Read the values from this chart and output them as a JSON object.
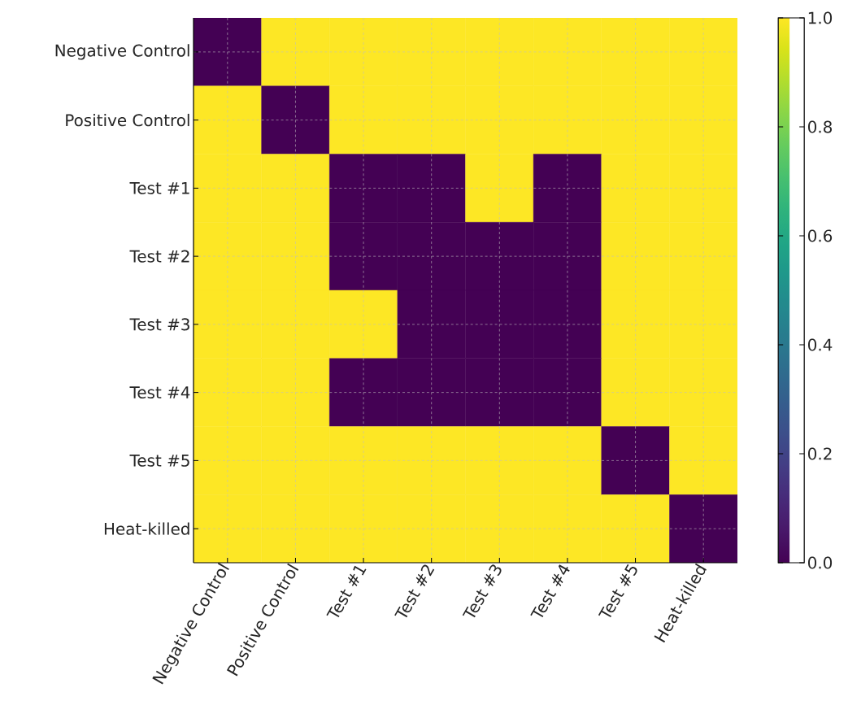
{
  "chart_data": {
    "type": "heatmap",
    "categories": [
      "Negative Control",
      "Positive Control",
      "Test #1",
      "Test #2",
      "Test #3",
      "Test #4",
      "Test #5",
      "Heat-killed"
    ],
    "y_categories": [
      "Negative Control",
      "Positive Control",
      "Test #1",
      "Test #2",
      "Test #3",
      "Test #4",
      "Test #5",
      "Heat-killed"
    ],
    "cells": [
      [
        0,
        1,
        1,
        1,
        1,
        1,
        1,
        1
      ],
      [
        1,
        0,
        1,
        1,
        1,
        1,
        1,
        1
      ],
      [
        1,
        1,
        0,
        0,
        1,
        0,
        1,
        1
      ],
      [
        1,
        1,
        0,
        0,
        0,
        0,
        1,
        1
      ],
      [
        1,
        1,
        1,
        0,
        0,
        0,
        1,
        1
      ],
      [
        1,
        1,
        0,
        0,
        0,
        0,
        1,
        1
      ],
      [
        1,
        1,
        1,
        1,
        1,
        1,
        0,
        1
      ],
      [
        1,
        1,
        1,
        1,
        1,
        1,
        1,
        0
      ]
    ],
    "clim": [
      0,
      1
    ],
    "cticks": [
      {
        "value": 0,
        "label": "0.0"
      },
      {
        "value": 0.2,
        "label": "0.2"
      },
      {
        "value": 0.4,
        "label": "0.4"
      },
      {
        "value": 0.6,
        "label": "0.6"
      },
      {
        "value": 0.8,
        "label": "0.8"
      },
      {
        "value": 1,
        "label": "1.0"
      }
    ],
    "grid": true
  }
}
